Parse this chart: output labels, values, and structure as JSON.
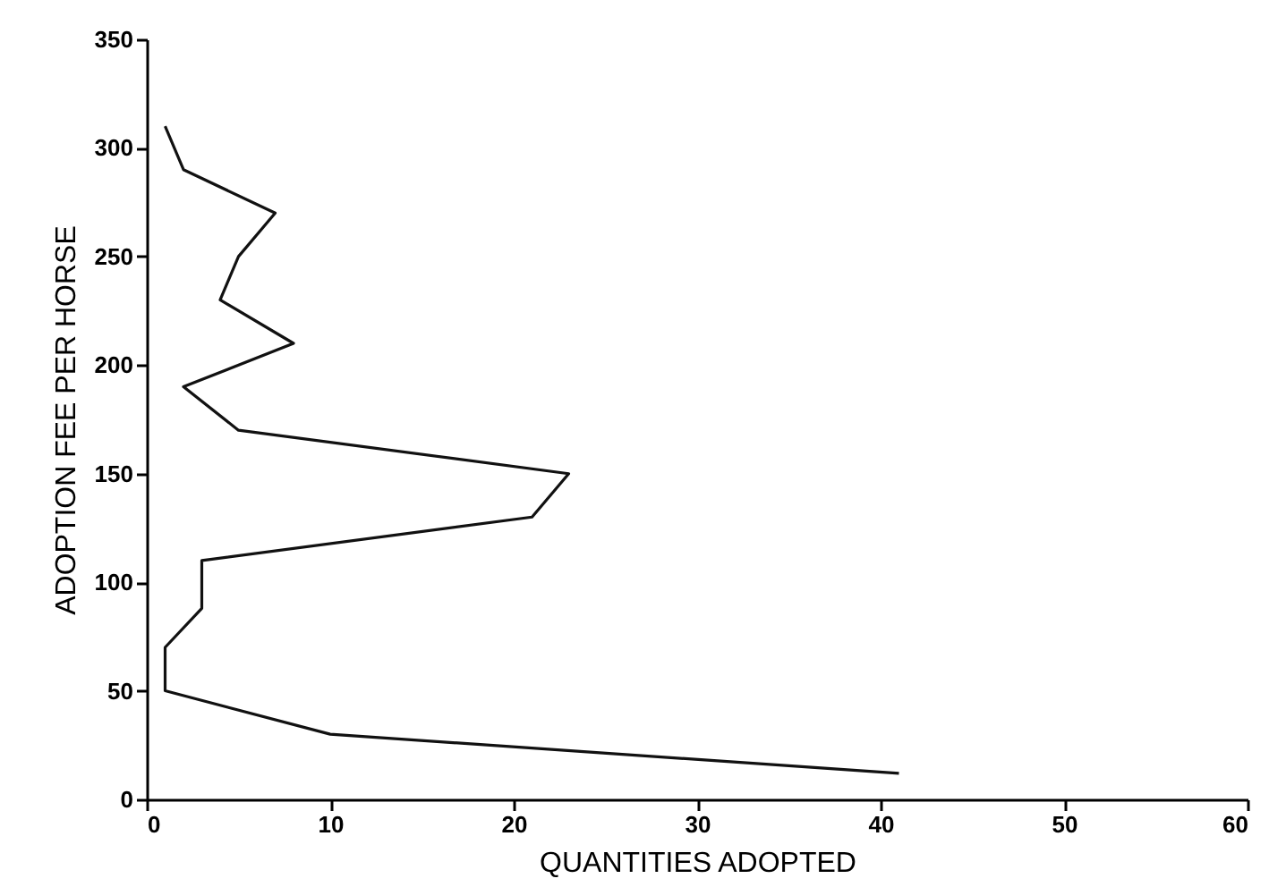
{
  "chart_data": {
    "type": "line",
    "xlabel": "QUANTITIES ADOPTED",
    "ylabel": "ADOPTION FEE PER HORSE",
    "x": [
      1,
      2,
      7,
      5,
      4,
      8,
      2,
      5,
      23,
      21,
      3,
      3,
      1,
      1,
      10,
      41
    ],
    "values": [
      310,
      290,
      270,
      250,
      230,
      210,
      190,
      170,
      150,
      130,
      110,
      88,
      70,
      50,
      30,
      12
    ],
    "color": "#111111",
    "xlim": [
      0,
      60
    ],
    "xticks": [
      0,
      10,
      20,
      30,
      40,
      50,
      60
    ],
    "ylim": [
      0,
      350
    ],
    "yticks": [
      0,
      50,
      100,
      150,
      200,
      250,
      300,
      350
    ],
    "grid": false,
    "marker": "none",
    "line_style": "solid"
  }
}
